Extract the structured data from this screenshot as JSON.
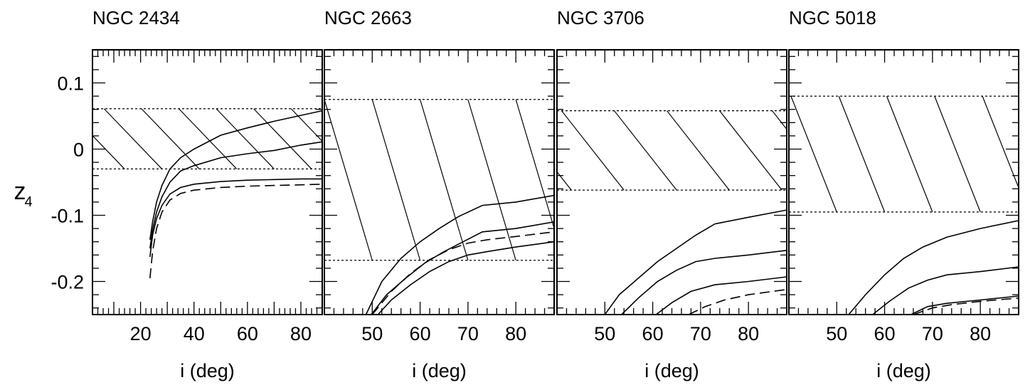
{
  "chart_data": [
    {
      "type": "line",
      "title": "NGC 2434",
      "xlabel": "i (deg)",
      "ylabel": "z4",
      "xlim": [
        2,
        88
      ],
      "ylim": [
        -0.25,
        0.15
      ],
      "xticks": [
        20,
        40,
        60,
        80
      ],
      "yticks": [
        -0.2,
        -0.1,
        0,
        0.1
      ],
      "ytick_labels": [
        "-0.2",
        "-0.1",
        "0",
        "0.1"
      ],
      "band": {
        "y_low": -0.03,
        "y_high": 0.061,
        "x_start": 2,
        "x_end": 88,
        "hatch_slope": -0.0042,
        "hatch_spacing": 14
      },
      "series": [
        {
          "style": "solid",
          "x": [
            23.5,
            24.5,
            26,
            28,
            31,
            35,
            40,
            50,
            60,
            70,
            80,
            88
          ],
          "y": [
            -0.137,
            -0.11,
            -0.08,
            -0.055,
            -0.03,
            -0.013,
            0.0,
            0.021,
            0.032,
            0.042,
            0.051,
            0.058
          ]
        },
        {
          "style": "solid",
          "x": [
            23.5,
            24.5,
            26,
            28,
            31,
            35,
            40,
            50,
            60,
            70,
            80,
            88
          ],
          "y": [
            -0.15,
            -0.122,
            -0.095,
            -0.072,
            -0.05,
            -0.033,
            -0.025,
            -0.013,
            -0.007,
            -0.002,
            0.006,
            0.011
          ]
        },
        {
          "style": "solid",
          "x": [
            23.5,
            24.5,
            26,
            28,
            31,
            35,
            40,
            50,
            60,
            70,
            80,
            88
          ],
          "y": [
            -0.163,
            -0.13,
            -0.105,
            -0.085,
            -0.068,
            -0.058,
            -0.053,
            -0.049,
            -0.047,
            -0.046,
            -0.045,
            -0.045
          ]
        },
        {
          "style": "dashed",
          "x": [
            23.5,
            24.5,
            26,
            28,
            31,
            35,
            40,
            50,
            60,
            70,
            80,
            88
          ],
          "y": [
            -0.195,
            -0.155,
            -0.12,
            -0.095,
            -0.077,
            -0.067,
            -0.062,
            -0.058,
            -0.056,
            -0.055,
            -0.054,
            -0.053
          ]
        }
      ]
    },
    {
      "type": "line",
      "title": "NGC 2663",
      "xlabel": "i (deg)",
      "ylabel": "",
      "xlim": [
        40,
        88
      ],
      "ylim": [
        -0.25,
        0.15
      ],
      "xticks": [
        50,
        60,
        70,
        80
      ],
      "yticks": [
        -0.2,
        -0.1,
        0,
        0.1
      ],
      "ytick_labels": [],
      "band": {
        "y_low": -0.168,
        "y_high": 0.075,
        "x_start": 40,
        "x_end": 88,
        "hatch_slope": -0.0243,
        "hatch_spacing": 10
      },
      "series": [
        {
          "style": "solid",
          "x": [
            48.7,
            52,
            56,
            60,
            64,
            68,
            73,
            80,
            88
          ],
          "y": [
            -0.25,
            -0.2,
            -0.165,
            -0.14,
            -0.12,
            -0.102,
            -0.085,
            -0.08,
            -0.07
          ]
        },
        {
          "style": "solid",
          "x": [
            49.8,
            53,
            57,
            61,
            65,
            69,
            73,
            80,
            88
          ],
          "y": [
            -0.25,
            -0.22,
            -0.195,
            -0.172,
            -0.155,
            -0.14,
            -0.125,
            -0.12,
            -0.11
          ]
        },
        {
          "style": "dashed",
          "x": [
            50,
            54,
            58,
            62,
            66,
            70,
            74,
            80,
            88
          ],
          "y": [
            -0.25,
            -0.215,
            -0.188,
            -0.167,
            -0.152,
            -0.142,
            -0.137,
            -0.132,
            -0.125
          ]
        },
        {
          "style": "solid",
          "x": [
            51.2,
            54,
            58,
            62,
            66,
            70,
            74,
            80,
            88
          ],
          "y": [
            -0.25,
            -0.228,
            -0.205,
            -0.185,
            -0.17,
            -0.16,
            -0.155,
            -0.148,
            -0.14
          ]
        }
      ]
    },
    {
      "type": "line",
      "title": "NGC 3706",
      "xlabel": "i (deg)",
      "ylabel": "",
      "xlim": [
        40,
        88
      ],
      "ylim": [
        -0.25,
        0.15
      ],
      "xticks": [
        50,
        60,
        70,
        80
      ],
      "yticks": [
        -0.2,
        -0.1,
        0,
        0.1
      ],
      "ytick_labels": [],
      "band": {
        "y_low": -0.062,
        "y_high": 0.058,
        "x_start": 40,
        "x_end": 88,
        "hatch_slope": -0.0092,
        "hatch_spacing": 11
      },
      "series": [
        {
          "style": "solid",
          "x": [
            50,
            53,
            57,
            61,
            65,
            69,
            73,
            80,
            88
          ],
          "y": [
            -0.25,
            -0.22,
            -0.195,
            -0.17,
            -0.15,
            -0.13,
            -0.113,
            -0.103,
            -0.092
          ]
        },
        {
          "style": "solid",
          "x": [
            53.5,
            57,
            61,
            65,
            69,
            73,
            80,
            88
          ],
          "y": [
            -0.25,
            -0.225,
            -0.2,
            -0.183,
            -0.17,
            -0.165,
            -0.16,
            -0.153
          ]
        },
        {
          "style": "solid",
          "x": [
            60.7,
            64,
            68,
            73,
            80,
            88
          ],
          "y": [
            -0.25,
            -0.232,
            -0.215,
            -0.205,
            -0.2,
            -0.193
          ]
        },
        {
          "style": "dashed",
          "x": [
            67.5,
            71,
            75,
            80,
            88
          ],
          "y": [
            -0.25,
            -0.238,
            -0.228,
            -0.22,
            -0.212
          ]
        }
      ]
    },
    {
      "type": "line",
      "title": "NGC 5018",
      "xlabel": "i (deg)",
      "ylabel": "",
      "xlim": [
        40,
        88
      ],
      "ylim": [
        -0.25,
        0.15
      ],
      "xticks": [
        50,
        60,
        70,
        80
      ],
      "yticks": [
        -0.2,
        -0.1,
        0,
        0.1
      ],
      "ytick_labels": [],
      "band": {
        "y_low": -0.095,
        "y_high": 0.08,
        "x_start": 40,
        "x_end": 88,
        "hatch_slope": -0.0183,
        "hatch_spacing": 10
      },
      "series": [
        {
          "style": "solid",
          "x": [
            52.5,
            56,
            60,
            64,
            68,
            73,
            80,
            88
          ],
          "y": [
            -0.25,
            -0.22,
            -0.19,
            -0.165,
            -0.148,
            -0.133,
            -0.12,
            -0.108
          ]
        },
        {
          "style": "solid",
          "x": [
            57.5,
            61,
            65,
            69,
            73,
            80,
            88
          ],
          "y": [
            -0.25,
            -0.23,
            -0.21,
            -0.198,
            -0.19,
            -0.185,
            -0.178
          ]
        },
        {
          "style": "solid",
          "x": [
            65.5,
            69,
            73,
            80,
            88
          ],
          "y": [
            -0.25,
            -0.238,
            -0.233,
            -0.228,
            -0.222
          ]
        },
        {
          "style": "dashed",
          "x": [
            66,
            70,
            74,
            80,
            88
          ],
          "y": [
            -0.25,
            -0.24,
            -0.235,
            -0.23,
            -0.225
          ]
        }
      ]
    }
  ]
}
